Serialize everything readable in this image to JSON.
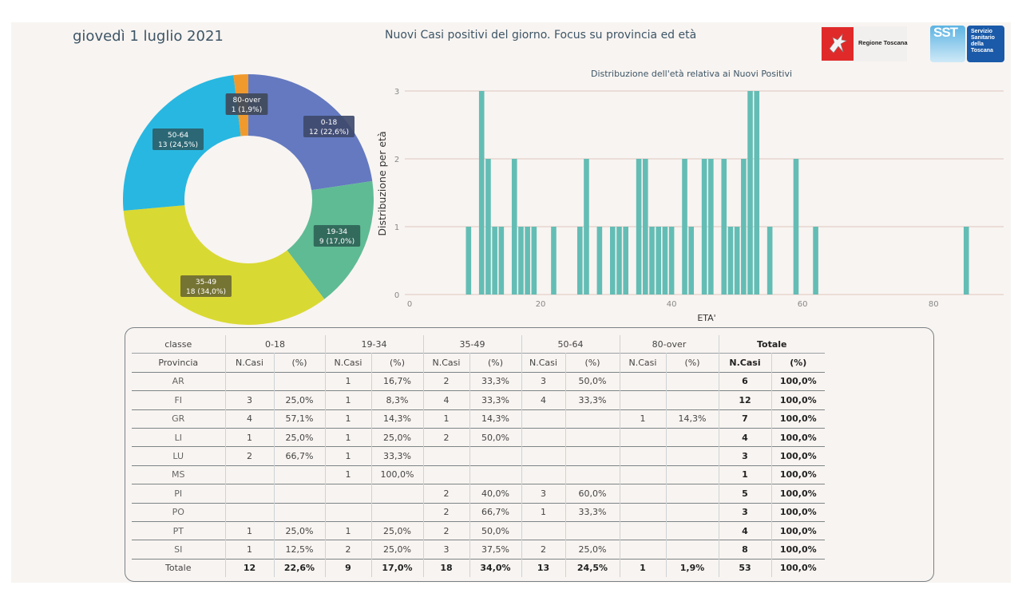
{
  "header": {
    "date": "giovedì 1 luglio 2021",
    "title": "Nuovi Casi positivi del giorno. Focus su provincia ed età",
    "logo_regione": "Regione Toscana",
    "logo_sst_short": "SST",
    "logo_sst_lines": [
      "Servizio",
      "Sanitario",
      "della",
      "Toscana"
    ]
  },
  "chart_data": [
    {
      "type": "pie",
      "subtype": "donut",
      "title": "",
      "slices": [
        {
          "label": "0-18",
          "value": 12,
          "percent": "22,6%",
          "text": "12 (22,6%)",
          "color": "#6479c0"
        },
        {
          "label": "19-34",
          "value": 9,
          "percent": "17,0%",
          "text": "9 (17,0%)",
          "color": "#5fbb94"
        },
        {
          "label": "35-49",
          "value": 18,
          "percent": "34,0%",
          "text": "18 (34,0%)",
          "color": "#d9d933"
        },
        {
          "label": "50-64",
          "value": 13,
          "percent": "24,5%",
          "text": "13 (24,5%)",
          "color": "#28b7e0"
        },
        {
          "label": "80-over",
          "value": 1,
          "percent": "1,9%",
          "text": "1 (1,9%)",
          "color": "#f09a2e"
        }
      ]
    },
    {
      "type": "bar",
      "title": "Distribuzione dell'età relativa ai Nuovi Positivi",
      "xlabel": "ETA'",
      "ylabel": "Distribuzione per età",
      "xlim": [
        0,
        90.7
      ],
      "ylim": [
        0,
        3
      ],
      "xticks": [
        0,
        20,
        40,
        60,
        80
      ],
      "yticks": [
        0,
        1,
        2,
        3
      ],
      "grid": true,
      "color": "#63bdb5",
      "x": [
        9,
        11,
        12,
        13,
        14,
        16,
        17,
        18,
        19,
        22,
        26,
        27,
        29,
        31,
        32,
        33,
        35,
        36,
        37,
        38,
        39,
        40,
        42,
        43,
        45,
        46,
        48,
        49,
        50,
        51,
        52,
        53,
        55,
        59,
        62,
        85
      ],
      "values": [
        1,
        3,
        2,
        1,
        1,
        2,
        1,
        1,
        1,
        1,
        1,
        2,
        1,
        1,
        1,
        1,
        2,
        2,
        1,
        1,
        1,
        1,
        2,
        1,
        2,
        2,
        2,
        1,
        1,
        2,
        3,
        3,
        1,
        2,
        1,
        1
      ]
    }
  ],
  "table": {
    "classe_label": "classe",
    "provincia_label": "Provincia",
    "groups": [
      "0-18",
      "19-34",
      "35-49",
      "50-64",
      "80-over",
      "Totale"
    ],
    "sub_headers": [
      "N.Casi",
      "(%)"
    ],
    "rows": [
      {
        "prov": "AR",
        "cells": [
          "",
          "",
          "1",
          "16,7%",
          "2",
          "33,3%",
          "3",
          "50,0%",
          "",
          "",
          "6",
          "100,0%"
        ]
      },
      {
        "prov": "FI",
        "cells": [
          "3",
          "25,0%",
          "1",
          "8,3%",
          "4",
          "33,3%",
          "4",
          "33,3%",
          "",
          "",
          "12",
          "100,0%"
        ]
      },
      {
        "prov": "GR",
        "cells": [
          "4",
          "57,1%",
          "1",
          "14,3%",
          "1",
          "14,3%",
          "",
          "",
          "1",
          "14,3%",
          "7",
          "100,0%"
        ]
      },
      {
        "prov": "LI",
        "cells": [
          "1",
          "25,0%",
          "1",
          "25,0%",
          "2",
          "50,0%",
          "",
          "",
          "",
          "",
          "4",
          "100,0%"
        ]
      },
      {
        "prov": "LU",
        "cells": [
          "2",
          "66,7%",
          "1",
          "33,3%",
          "",
          "",
          "",
          "",
          "",
          "",
          "3",
          "100,0%"
        ]
      },
      {
        "prov": "MS",
        "cells": [
          "",
          "",
          "1",
          "100,0%",
          "",
          "",
          "",
          "",
          "",
          "",
          "1",
          "100,0%"
        ]
      },
      {
        "prov": "PI",
        "cells": [
          "",
          "",
          "",
          "",
          "2",
          "40,0%",
          "3",
          "60,0%",
          "",
          "",
          "5",
          "100,0%"
        ]
      },
      {
        "prov": "PO",
        "cells": [
          "",
          "",
          "",
          "",
          "2",
          "66,7%",
          "1",
          "33,3%",
          "",
          "",
          "3",
          "100,0%"
        ]
      },
      {
        "prov": "PT",
        "cells": [
          "1",
          "25,0%",
          "1",
          "25,0%",
          "2",
          "50,0%",
          "",
          "",
          "",
          "",
          "4",
          "100,0%"
        ]
      },
      {
        "prov": "SI",
        "cells": [
          "1",
          "12,5%",
          "2",
          "25,0%",
          "3",
          "37,5%",
          "2",
          "25,0%",
          "",
          "",
          "8",
          "100,0%"
        ]
      }
    ],
    "total": {
      "prov": "Totale",
      "cells": [
        "12",
        "22,6%",
        "9",
        "17,0%",
        "18",
        "34,0%",
        "13",
        "24,5%",
        "1",
        "1,9%",
        "53",
        "100,0%"
      ]
    }
  }
}
